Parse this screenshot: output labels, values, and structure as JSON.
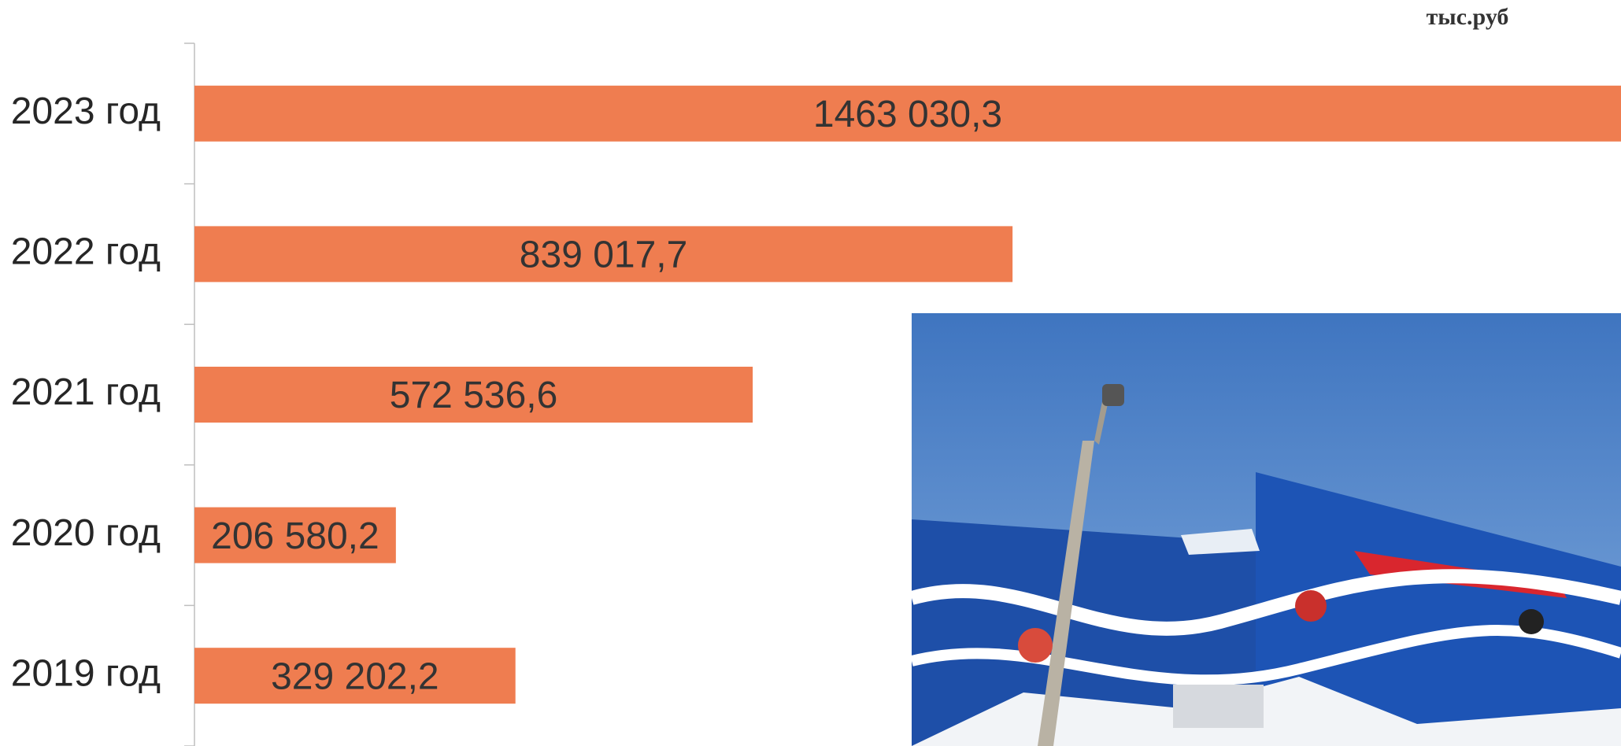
{
  "chart_data": {
    "type": "bar",
    "orientation": "horizontal",
    "unit_label": "тыс.руб",
    "categories": [
      "2023 год",
      "2022 год",
      "2021 год",
      "2020 год",
      "2019 год"
    ],
    "values": [
      1463030.3,
      839017.7,
      572536.6,
      206580.2,
      329202.2
    ],
    "value_labels": [
      "1463 030,3",
      "839 017,7",
      "572 536,6",
      "206 580,2",
      "329 202,2"
    ],
    "color": "#ef7d50"
  }
}
